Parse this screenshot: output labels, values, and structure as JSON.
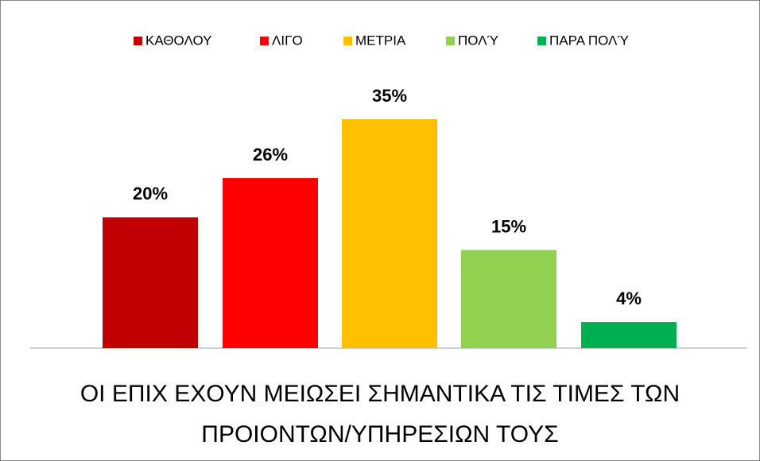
{
  "chart_data": {
    "type": "bar",
    "categories": [
      "ΟΙ ΕΠΙΧ ΕΧΟΥΝ ΜΕΙΩΣΕΙ ΣΗΜΑΝΤΙΚΑ ΤΙΣ ΤΙΜΕΣ ΤΩΝ ΠΡΟΙΟΝΤΩΝ/ΥΠΗΡΕΣΙΩΝ ΤΟΥΣ"
    ],
    "series": [
      {
        "name": "ΚΑΘΟΛΟΥ",
        "color": "#c00000",
        "values": [
          20
        ],
        "value_labels": [
          "20%"
        ]
      },
      {
        "name": "ΛΙΓΟ",
        "color": "#ff0000",
        "values": [
          26
        ],
        "value_labels": [
          "26%"
        ]
      },
      {
        "name": "ΜΕΤΡΙΑ",
        "color": "#ffc000",
        "values": [
          35
        ],
        "value_labels": [
          "35%"
        ]
      },
      {
        "name": "ΠΟΛΎ",
        "color": "#92d050",
        "values": [
          15
        ],
        "value_labels": [
          "15%"
        ]
      },
      {
        "name": "ΠΑΡΑ ΠΟΛΎ",
        "color": "#00b050",
        "values": [
          4
        ],
        "value_labels": [
          "4%"
        ]
      }
    ],
    "legend": "top"
  }
}
